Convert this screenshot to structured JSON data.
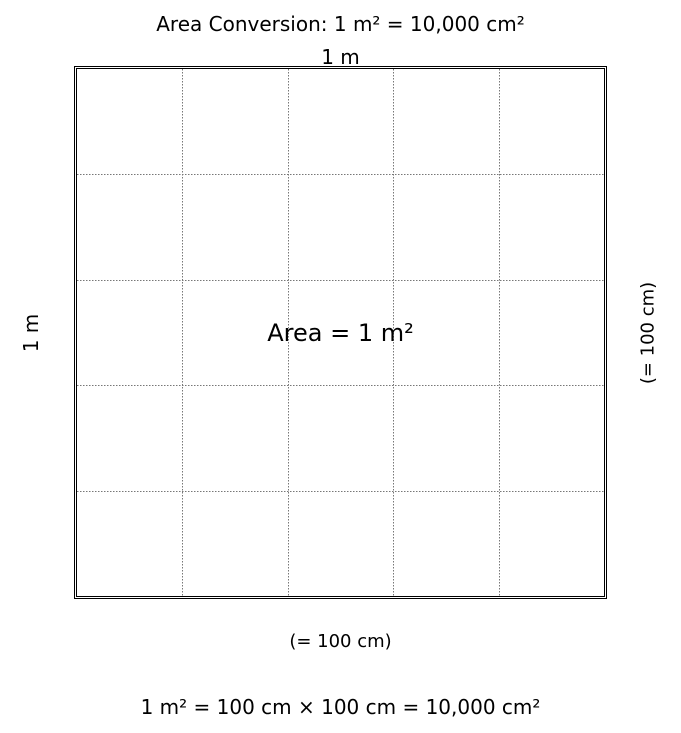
{
  "title": "Area Conversion: 1 m² = 10,000 cm²",
  "labels": {
    "top": "1 m",
    "left": "1 m",
    "right": "(= 100 cm)",
    "bottom": "(= 100 cm)",
    "center": "Area = 1 m²"
  },
  "formula": "1 m² = 100 cm × 100 cm = 10,000 cm²",
  "grid": {
    "divisions": 5,
    "line_color": "#777777",
    "border_color": "#000000"
  }
}
